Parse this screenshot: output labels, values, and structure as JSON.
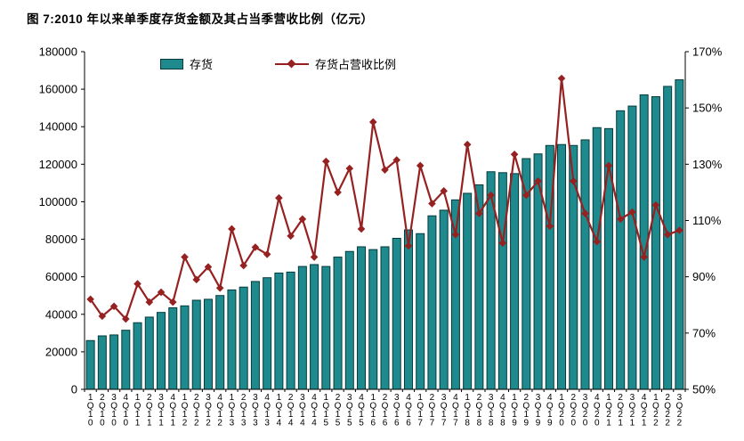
{
  "chart_data": {
    "type": "combo-bar-line",
    "title": "图 7:2010 年以来单季度存货金额及其占当季营收比例（亿元）",
    "categories": [
      "1Q10",
      "2Q10",
      "3Q10",
      "4Q10",
      "1Q11",
      "2Q11",
      "3Q11",
      "4Q11",
      "1Q12",
      "2Q12",
      "3Q12",
      "4Q12",
      "1Q13",
      "2Q13",
      "3Q13",
      "4Q13",
      "1Q14",
      "2Q14",
      "3Q14",
      "4Q14",
      "1Q15",
      "2Q15",
      "3Q15",
      "4Q15",
      "1Q16",
      "2Q16",
      "3Q16",
      "4Q16",
      "1Q17",
      "2Q17",
      "3Q17",
      "4Q17",
      "1Q18",
      "2Q18",
      "3Q18",
      "4Q18",
      "1Q19",
      "2Q19",
      "3Q19",
      "4Q19",
      "1Q20",
      "2Q20",
      "3Q20",
      "4Q20",
      "1Q21",
      "2Q21",
      "3Q21",
      "4Q21",
      "1Q22",
      "2Q22",
      "3Q22"
    ],
    "series": [
      {
        "name": "存货",
        "type": "bar",
        "axis": "left",
        "color": "#1e8a8d",
        "edge_color": "#06393b",
        "values": [
          26000,
          28500,
          29000,
          31500,
          35500,
          38500,
          41000,
          43500,
          44500,
          47500,
          48000,
          50000,
          53000,
          54500,
          57500,
          59500,
          62000,
          62500,
          65500,
          66500,
          65500,
          70500,
          73500,
          76000,
          74500,
          76000,
          80500,
          85000,
          83000,
          92500,
          95500,
          101000,
          104500,
          109000,
          116000,
          115500,
          115000,
          123000,
          125500,
          130000,
          130500,
          130000,
          133000,
          139500,
          139000,
          148500,
          151000,
          157000,
          156000,
          161500,
          165000
        ]
      },
      {
        "name": "存货占营收比例",
        "type": "line",
        "axis": "right",
        "color": "#962121",
        "marker": "diamond",
        "values": [
          82,
          76,
          79.5,
          75,
          87.5,
          81,
          84.5,
          81,
          97,
          89,
          93.5,
          86,
          107,
          94,
          100.5,
          98,
          118,
          104.5,
          110.5,
          97,
          131,
          120,
          128.5,
          107,
          145,
          128,
          131.5,
          101,
          129.5,
          116,
          120.5,
          105,
          137,
          112.5,
          119,
          102,
          133.5,
          119,
          124,
          108,
          160.5,
          124,
          112.5,
          102.5,
          129.5,
          110.5,
          113,
          97,
          115.5,
          105,
          106.5
        ]
      }
    ],
    "left_axis": {
      "min": 0,
      "max": 180000,
      "step": 20000,
      "tick_labels": [
        "0",
        "20000",
        "40000",
        "60000",
        "80000",
        "100000",
        "120000",
        "140000",
        "160000",
        "180000"
      ]
    },
    "right_axis": {
      "min": 50,
      "max": 170,
      "step": 20,
      "tick_labels": [
        "50%",
        "70%",
        "90%",
        "110%",
        "130%",
        "150%",
        "170%"
      ]
    },
    "legend_position": "top-inside",
    "grid": false
  }
}
